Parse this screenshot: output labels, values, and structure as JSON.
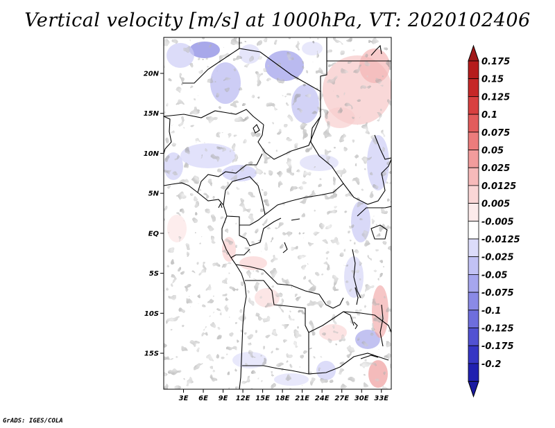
{
  "title": "Vertical velocity [m/s] at 1000hPa, VT: 2020102406",
  "credit": "GrADS: IGES/COLA",
  "map": {
    "lon_range": [
      0,
      34.5
    ],
    "lat_range": [
      -19.5,
      24.5
    ],
    "lat_ticks": [
      {
        "value": 20,
        "label": "20N"
      },
      {
        "value": 15,
        "label": "15N"
      },
      {
        "value": 10,
        "label": "10N"
      },
      {
        "value": 5,
        "label": "5N"
      },
      {
        "value": 0,
        "label": "EQ"
      },
      {
        "value": -5,
        "label": "5S"
      },
      {
        "value": -10,
        "label": "10S"
      },
      {
        "value": -15,
        "label": "15S"
      }
    ],
    "lon_ticks": [
      {
        "value": 3,
        "label": "3E"
      },
      {
        "value": 6,
        "label": "6E"
      },
      {
        "value": 9,
        "label": "9E"
      },
      {
        "value": 12,
        "label": "12E"
      },
      {
        "value": 15,
        "label": "15E"
      },
      {
        "value": 18,
        "label": "18E"
      },
      {
        "value": 21,
        "label": "21E"
      },
      {
        "value": 24,
        "label": "24E"
      },
      {
        "value": 27,
        "label": "27E"
      },
      {
        "value": 30,
        "label": "30E"
      },
      {
        "value": 33,
        "label": "33E"
      }
    ]
  },
  "colorbar": {
    "levels": [
      {
        "label": "0.175",
        "color": "#b51c1c"
      },
      {
        "label": "0.15",
        "color": "#c62828"
      },
      {
        "label": "0.125",
        "color": "#d84040"
      },
      {
        "label": "0.1",
        "color": "#e35c5c"
      },
      {
        "label": "0.075",
        "color": "#ec7c7c"
      },
      {
        "label": "0.05",
        "color": "#f29c9c"
      },
      {
        "label": "0.025",
        "color": "#f7baba"
      },
      {
        "label": "0.0125",
        "color": "#fad6d6"
      },
      {
        "label": "0.005",
        "color": "#fcebeb"
      },
      {
        "label": "-0.005",
        "color": "#ffffff"
      },
      {
        "label": "-0.0125",
        "color": "#dcdcfa"
      },
      {
        "label": "-0.025",
        "color": "#c2c2f5"
      },
      {
        "label": "-0.05",
        "color": "#a6a6ee"
      },
      {
        "label": "-0.075",
        "color": "#8a8ae6"
      },
      {
        "label": "-0.1",
        "color": "#6e6edd"
      },
      {
        "label": "-0.125",
        "color": "#5252d2"
      },
      {
        "label": "-0.175",
        "color": "#3636c4"
      },
      {
        "label": "-0.2",
        "color": "#2020b0"
      }
    ],
    "top_arrow_color": "#a01818",
    "bottom_arrow_color": "#1a1aa0"
  }
}
